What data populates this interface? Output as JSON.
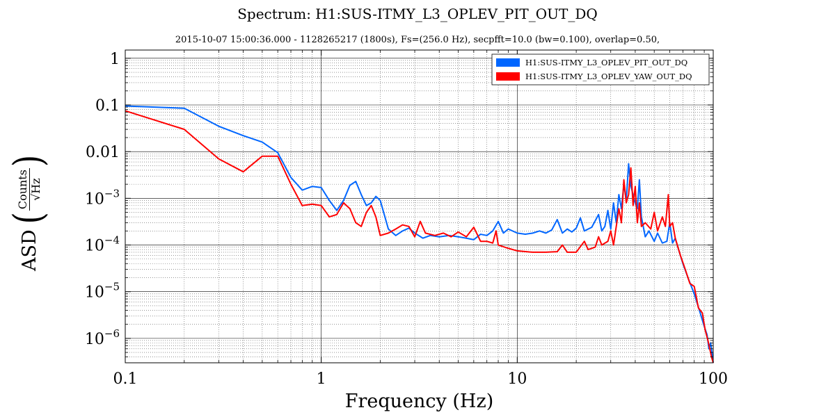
{
  "chart_data": {
    "type": "line",
    "title": "Spectrum: H1:SUS-ITMY_L3_OPLEV_PIT_OUT_DQ",
    "subtitle": "2015-10-07 15:00:36.000 - 1128265217 (1800s), Fs=(256.0 Hz), secpfft=10.0 (bw=0.100), overlap=0.50,",
    "xlabel": "Frequency (Hz)",
    "ylabel": {
      "prefix": "ASD",
      "numerator": "Counts",
      "denominator": "√Hz"
    },
    "xscale": "log",
    "yscale": "log",
    "xlim": [
      0.1,
      100
    ],
    "ylim": [
      3e-07,
      1.5
    ],
    "grid": true,
    "legend_position": "top-right",
    "x_ticks": [
      {
        "value": 0.1,
        "label": "0.1"
      },
      {
        "value": 1,
        "label": "1"
      },
      {
        "value": 10,
        "label": "10"
      },
      {
        "value": 100,
        "label": "100"
      }
    ],
    "y_ticks": [
      {
        "value": 1,
        "label": "1"
      },
      {
        "value": 0.1,
        "label": "0.1"
      },
      {
        "value": 0.01,
        "label": "0.01"
      },
      {
        "value": 0.001,
        "label": "10",
        "exp": "−3"
      },
      {
        "value": 0.0001,
        "label": "10",
        "exp": "−4"
      },
      {
        "value": 1e-05,
        "label": "10",
        "exp": "−5"
      },
      {
        "value": 1e-06,
        "label": "10",
        "exp": "−6"
      }
    ],
    "series": [
      {
        "name": "H1:SUS-ITMY_L3_OPLEV_PIT_OUT_DQ",
        "color": "#0066ff",
        "points": [
          [
            0.1,
            0.095
          ],
          [
            0.2,
            0.085
          ],
          [
            0.3,
            0.035
          ],
          [
            0.4,
            0.022
          ],
          [
            0.5,
            0.016
          ],
          [
            0.6,
            0.0095
          ],
          [
            0.7,
            0.0028
          ],
          [
            0.8,
            0.0015
          ],
          [
            0.9,
            0.0018
          ],
          [
            1.0,
            0.0017
          ],
          [
            1.1,
            0.0009
          ],
          [
            1.2,
            0.00055
          ],
          [
            1.3,
            0.0009
          ],
          [
            1.4,
            0.0019
          ],
          [
            1.5,
            0.0023
          ],
          [
            1.6,
            0.0012
          ],
          [
            1.7,
            0.0007
          ],
          [
            1.8,
            0.0008
          ],
          [
            1.9,
            0.0011
          ],
          [
            2.0,
            0.0009
          ],
          [
            2.2,
            0.00022
          ],
          [
            2.4,
            0.00016
          ],
          [
            2.6,
            0.0002
          ],
          [
            2.8,
            0.00023
          ],
          [
            3.0,
            0.00018
          ],
          [
            3.3,
            0.00014
          ],
          [
            3.6,
            0.00016
          ],
          [
            4.0,
            0.00015
          ],
          [
            4.5,
            0.00016
          ],
          [
            5.0,
            0.00015
          ],
          [
            5.5,
            0.00014
          ],
          [
            6.0,
            0.00013
          ],
          [
            6.5,
            0.00017
          ],
          [
            7.0,
            0.00016
          ],
          [
            7.5,
            0.0002
          ],
          [
            8.0,
            0.00032
          ],
          [
            8.5,
            0.00018
          ],
          [
            9.0,
            0.00022
          ],
          [
            10.0,
            0.00018
          ],
          [
            11.0,
            0.00017
          ],
          [
            12.0,
            0.00018
          ],
          [
            13.0,
            0.0002
          ],
          [
            14.0,
            0.00018
          ],
          [
            15.0,
            0.00021
          ],
          [
            16.0,
            0.00035
          ],
          [
            17.0,
            0.00018
          ],
          [
            18.0,
            0.00022
          ],
          [
            19.0,
            0.00019
          ],
          [
            20.0,
            0.00023
          ],
          [
            21.0,
            0.00038
          ],
          [
            22.0,
            0.0002
          ],
          [
            24.0,
            0.00024
          ],
          [
            26.0,
            0.00045
          ],
          [
            27.0,
            0.0002
          ],
          [
            28.0,
            0.00025
          ],
          [
            29.0,
            0.00055
          ],
          [
            30.0,
            0.00022
          ],
          [
            31.0,
            0.0008
          ],
          [
            32.0,
            0.0003
          ],
          [
            33.0,
            0.0012
          ],
          [
            34.0,
            0.0006
          ],
          [
            35.0,
            0.002
          ],
          [
            36.0,
            0.0009
          ],
          [
            37.0,
            0.0055
          ],
          [
            38.0,
            0.0018
          ],
          [
            39.0,
            0.0012
          ],
          [
            40.0,
            0.0008
          ],
          [
            41.0,
            0.0006
          ],
          [
            42.0,
            0.0025
          ],
          [
            43.0,
            0.0004
          ],
          [
            45.0,
            0.00015
          ],
          [
            47.0,
            0.0002
          ],
          [
            50.0,
            0.00012
          ],
          [
            52.0,
            0.00018
          ],
          [
            55.0,
            0.00011
          ],
          [
            58.0,
            0.00012
          ],
          [
            60.0,
            0.0003
          ],
          [
            62.0,
            0.00011
          ],
          [
            64.0,
            0.00014
          ],
          [
            66.0,
            9e-05
          ],
          [
            70.0,
            4e-05
          ],
          [
            75.0,
            1.8e-05
          ],
          [
            80.0,
            9e-06
          ],
          [
            85.0,
            4e-06
          ],
          [
            90.0,
            1.8e-06
          ],
          [
            93.0,
            1.2e-06
          ],
          [
            95.0,
            6e-07
          ],
          [
            97.0,
            8e-07
          ],
          [
            100.0,
            3e-07
          ]
        ]
      },
      {
        "name": "H1:SUS-ITMY_L3_OPLEV_YAW_OUT_DQ",
        "color": "#ff0000",
        "points": [
          [
            0.1,
            0.075
          ],
          [
            0.2,
            0.03
          ],
          [
            0.3,
            0.007
          ],
          [
            0.4,
            0.0037
          ],
          [
            0.5,
            0.008
          ],
          [
            0.6,
            0.008
          ],
          [
            0.7,
            0.002
          ],
          [
            0.8,
            0.0007
          ],
          [
            0.9,
            0.00075
          ],
          [
            1.0,
            0.0007
          ],
          [
            1.1,
            0.0004
          ],
          [
            1.2,
            0.00045
          ],
          [
            1.3,
            0.0008
          ],
          [
            1.4,
            0.0006
          ],
          [
            1.5,
            0.0003
          ],
          [
            1.6,
            0.00025
          ],
          [
            1.7,
            0.0005
          ],
          [
            1.8,
            0.0007
          ],
          [
            1.9,
            0.0004
          ],
          [
            2.0,
            0.00016
          ],
          [
            2.2,
            0.00018
          ],
          [
            2.4,
            0.00022
          ],
          [
            2.6,
            0.00027
          ],
          [
            2.8,
            0.00025
          ],
          [
            3.0,
            0.00015
          ],
          [
            3.2,
            0.00032
          ],
          [
            3.4,
            0.00018
          ],
          [
            3.8,
            0.00016
          ],
          [
            4.2,
            0.00018
          ],
          [
            4.6,
            0.00015
          ],
          [
            5.0,
            0.00019
          ],
          [
            5.5,
            0.00015
          ],
          [
            6.0,
            0.00024
          ],
          [
            6.5,
            0.00012
          ],
          [
            7.0,
            0.00012
          ],
          [
            7.5,
            0.00011
          ],
          [
            7.8,
            0.0002
          ],
          [
            8.0,
            0.0001
          ],
          [
            9.0,
            8.5e-05
          ],
          [
            10.0,
            7.5e-05
          ],
          [
            12.0,
            7e-05
          ],
          [
            14.0,
            7e-05
          ],
          [
            16.0,
            7.2e-05
          ],
          [
            17.0,
            0.0001
          ],
          [
            18.0,
            7e-05
          ],
          [
            20.0,
            7e-05
          ],
          [
            22.0,
            0.00012
          ],
          [
            23.0,
            8e-05
          ],
          [
            25.0,
            9e-05
          ],
          [
            26.0,
            0.00015
          ],
          [
            27.0,
            0.0001
          ],
          [
            29.0,
            0.00012
          ],
          [
            30.0,
            0.0002
          ],
          [
            31.0,
            0.0001
          ],
          [
            33.0,
            0.0006
          ],
          [
            34.0,
            0.0003
          ],
          [
            35.0,
            0.0025
          ],
          [
            36.0,
            0.0008
          ],
          [
            37.0,
            0.0012
          ],
          [
            38.0,
            0.0045
          ],
          [
            39.0,
            0.0007
          ],
          [
            40.0,
            0.0018
          ],
          [
            41.0,
            0.0003
          ],
          [
            42.0,
            0.0008
          ],
          [
            43.0,
            0.00025
          ],
          [
            45.0,
            0.0003
          ],
          [
            48.0,
            0.00022
          ],
          [
            50.0,
            0.0005
          ],
          [
            52.0,
            0.0002
          ],
          [
            55.0,
            0.0004
          ],
          [
            57.0,
            0.00025
          ],
          [
            59.0,
            0.0012
          ],
          [
            60.0,
            0.00025
          ],
          [
            62.0,
            0.0003
          ],
          [
            64.0,
            0.00014
          ],
          [
            68.0,
            6e-05
          ],
          [
            72.0,
            3e-05
          ],
          [
            76.0,
            1.5e-05
          ],
          [
            80.0,
            1.3e-05
          ],
          [
            84.0,
            4.5e-06
          ],
          [
            88.0,
            3.5e-06
          ],
          [
            91.0,
            1.5e-06
          ],
          [
            94.0,
            9e-07
          ],
          [
            96.0,
            6e-07
          ],
          [
            98.0,
            4e-07
          ],
          [
            100.0,
            3e-07
          ]
        ]
      }
    ]
  }
}
